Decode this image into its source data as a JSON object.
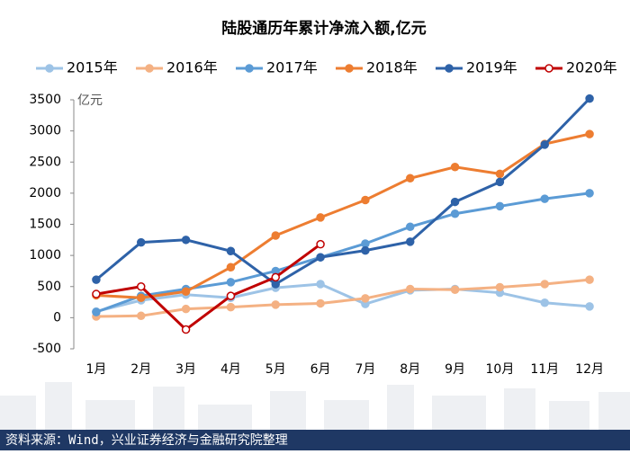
{
  "chart_data": {
    "type": "line",
    "title": "陆股通历年累计净流入额,亿元",
    "unit_label": "亿元",
    "categories": [
      "1月",
      "2月",
      "3月",
      "4月",
      "5月",
      "6月",
      "7月",
      "8月",
      "9月",
      "10月",
      "11月",
      "12月"
    ],
    "series": [
      {
        "name": "2015年",
        "color": "#9dc3e6",
        "marker_fill": "#9dc3e6",
        "values": [
          100,
          280,
          370,
          320,
          480,
          540,
          220,
          440,
          460,
          400,
          240,
          180
        ]
      },
      {
        "name": "2016年",
        "color": "#f4b183",
        "marker_fill": "#f4b183",
        "values": [
          20,
          30,
          140,
          170,
          210,
          230,
          310,
          460,
          450,
          490,
          540,
          610
        ]
      },
      {
        "name": "2017年",
        "color": "#5b9bd5",
        "marker_fill": "#5b9bd5",
        "values": [
          90,
          350,
          460,
          570,
          750,
          970,
          1190,
          1460,
          1670,
          1790,
          1910,
          2000
        ]
      },
      {
        "name": "2018年",
        "color": "#ed7d31",
        "marker_fill": "#ed7d31",
        "values": [
          360,
          320,
          420,
          810,
          1320,
          1610,
          1890,
          2240,
          2420,
          2310,
          2790,
          2950
        ]
      },
      {
        "name": "2019年",
        "color": "#2e62a8",
        "marker_fill": "#2e62a8",
        "values": [
          610,
          1210,
          1250,
          1070,
          540,
          970,
          1080,
          1220,
          1860,
          2180,
          2780,
          3520
        ]
      },
      {
        "name": "2020年",
        "color": "#c00000",
        "marker_fill": "#ffffff",
        "values": [
          380,
          500,
          -190,
          350,
          650,
          1180,
          null,
          null,
          null,
          null,
          null,
          null
        ]
      }
    ],
    "ylim": [
      -500,
      3500
    ],
    "yticks": [
      -500,
      0,
      500,
      1000,
      1500,
      2000,
      2500,
      3000,
      3500
    ],
    "grid": false,
    "source": "资料来源：Wind，兴业证券经济与金融研究院整理"
  }
}
